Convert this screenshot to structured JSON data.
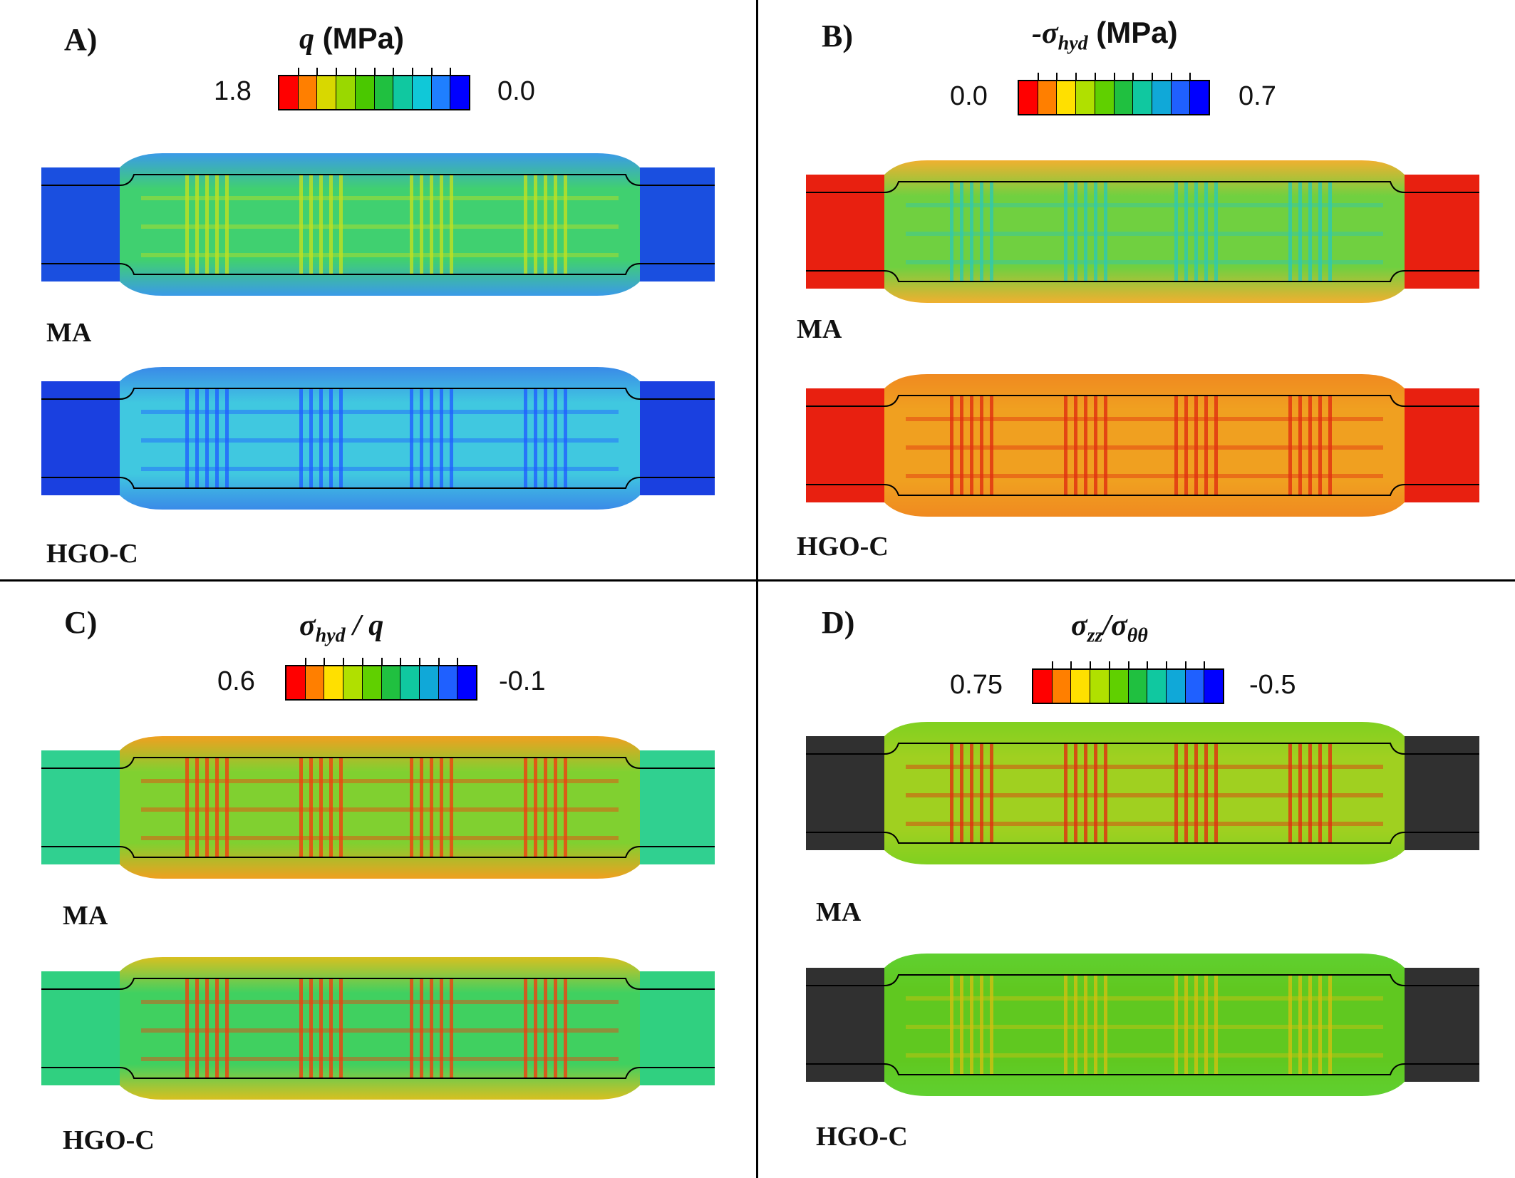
{
  "panels": [
    {
      "label": "A)",
      "title_main": "q",
      "title_unit": " (MPa)",
      "cb_left": "1.8",
      "cb_right": "0.0",
      "colors": [
        "#ff0000",
        "#ff7f00",
        "#d8d800",
        "#9ad800",
        "#4ac800",
        "#20c040",
        "#10c8a0",
        "#10c8d8",
        "#1f7fff",
        "#0000ff"
      ],
      "models": [
        "MA",
        "HGO-C"
      ],
      "fills": {
        "MA": {
          "base": "#1a4fe0",
          "inner": "#40d070",
          "streak": "#c0e020",
          "outer_tint": "#3a9ae8"
        },
        "HGO-C": {
          "base": "#1a40e0",
          "inner": "#40c8e0",
          "streak": "#2060ff",
          "outer_tint": "#3a8ae8"
        }
      }
    },
    {
      "label": "B)",
      "title_main": "-σ",
      "title_sub": "hyd",
      "title_unit": " (MPa)",
      "cb_left": "0.0",
      "cb_right": "0.7",
      "colors": [
        "#ff0000",
        "#ff7f00",
        "#ffe000",
        "#b0e000",
        "#60d000",
        "#20c040",
        "#10c8a0",
        "#10a8d8",
        "#1f60ff",
        "#0000ff"
      ],
      "models": [
        "MA",
        "HGO-C"
      ],
      "fills": {
        "MA": {
          "base": "#e82010",
          "inner": "#70d040",
          "streak": "#30c8b0",
          "outer_tint": "#f0b030"
        },
        "HGO-C": {
          "base": "#e82010",
          "inner": "#f0a020",
          "streak": "#e03010",
          "outer_tint": "#f08a20"
        }
      }
    },
    {
      "label": "C)",
      "title_main": "σ",
      "title_sub": "hyd",
      "title_unit": " / q",
      "cb_left": "0.6",
      "cb_right": "-0.1",
      "colors": [
        "#ff0000",
        "#ff7f00",
        "#ffe000",
        "#b0e000",
        "#60d000",
        "#20c040",
        "#10c8a0",
        "#10a8d8",
        "#1f60ff",
        "#0000ff"
      ],
      "models": [
        "MA",
        "HGO-C"
      ],
      "fills": {
        "MA": {
          "base": "#30d090",
          "inner": "#80d030",
          "streak": "#f04010",
          "outer_tint": "#f0a020"
        },
        "HGO-C": {
          "base": "#30d080",
          "inner": "#40d060",
          "streak": "#f04010",
          "outer_tint": "#d8c020"
        }
      }
    },
    {
      "label": "D)",
      "title_main": "σ",
      "title_sub": "zz",
      "title_unit": "/σ",
      "title_sub2": "θθ",
      "cb_left": "0.75",
      "cb_right": "-0.5",
      "colors": [
        "#ff0000",
        "#ff7f00",
        "#ffe000",
        "#b0e000",
        "#60d000",
        "#20c040",
        "#10c8a0",
        "#10a8d8",
        "#1f60ff",
        "#0000ff"
      ],
      "models": [
        "MA",
        "HGO-C"
      ],
      "fills": {
        "MA": {
          "base": "#303030",
          "inner": "#a0d020",
          "streak": "#e03010",
          "outer_tint": "#80d020"
        },
        "HGO-C": {
          "base": "#303030",
          "inner": "#60c820",
          "streak": "#d0c010",
          "outer_tint": "#60d030"
        }
      }
    }
  ]
}
